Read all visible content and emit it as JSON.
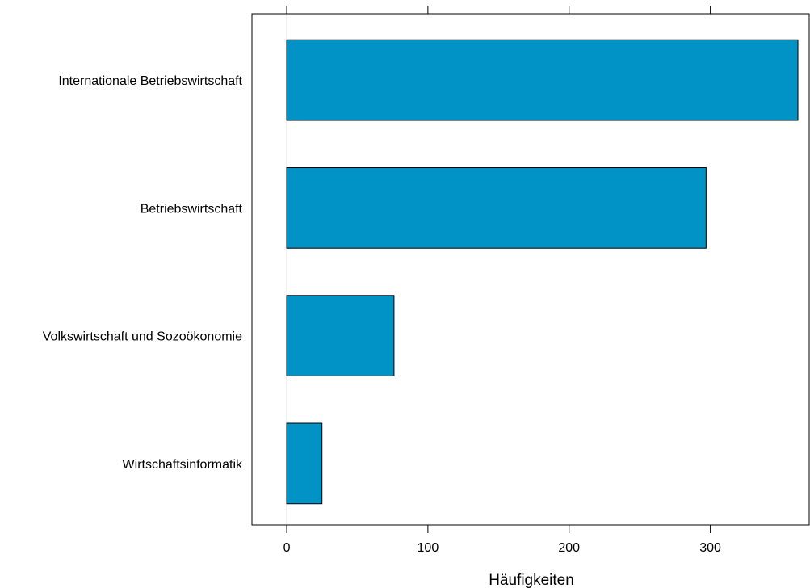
{
  "chart_data": {
    "type": "bar",
    "orientation": "horizontal",
    "categories": [
      "Internationale Betriebswirtschaft",
      "Betriebswirtschaft",
      "Volkswirtschaft und Sozoökonomie",
      "Wirtschaftsinformatik"
    ],
    "values": [
      362,
      297,
      76,
      25
    ],
    "xlabel": "Häufigkeiten",
    "ylabel": "",
    "xlim": [
      -24.6,
      370
    ],
    "xticks": [
      0,
      100,
      200,
      300
    ],
    "xtick_labels": [
      "0",
      "100",
      "200",
      "300"
    ],
    "grid": false,
    "colors": {
      "bar_fill": "#0293c6",
      "bar_stroke": "#000000",
      "zero_line": "#e6e6e6"
    }
  }
}
